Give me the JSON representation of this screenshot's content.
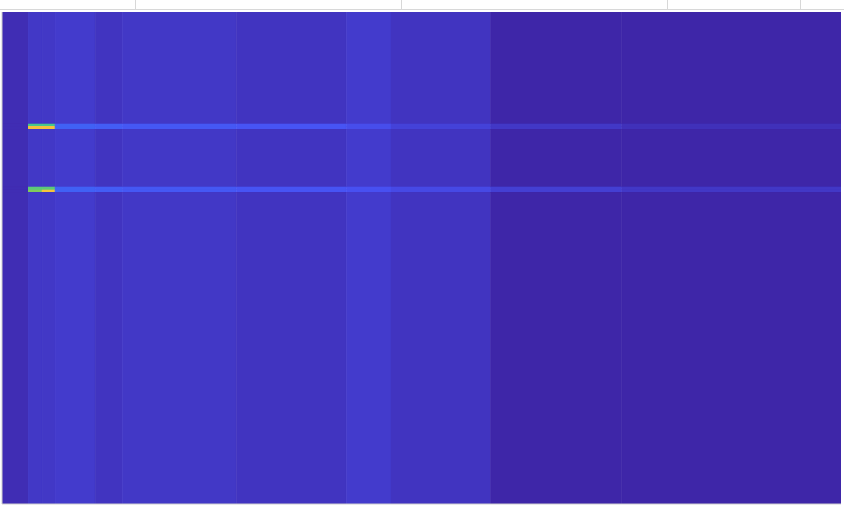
{
  "chart_data": {
    "type": "heatmap",
    "x_edges": [
      0,
      38,
      58,
      77,
      135,
      175,
      340,
      500,
      565,
      710,
      900,
      1219
    ],
    "y_edges": [
      0,
      163,
      167,
      171,
      255,
      259,
      263,
      716
    ],
    "cells": [
      [
        0.02,
        0.05,
        0.05,
        0.06,
        0.04,
        0.05,
        0.04,
        0.06,
        0.04,
        0.0,
        0.0
      ],
      [
        0.02,
        0.52,
        0.52,
        0.16,
        0.15,
        0.14,
        0.13,
        0.11,
        0.08,
        0.05,
        0.03
      ],
      [
        0.02,
        0.8,
        0.8,
        0.16,
        0.15,
        0.14,
        0.13,
        0.11,
        0.08,
        0.05,
        0.03
      ],
      [
        0.02,
        0.05,
        0.05,
        0.06,
        0.04,
        0.05,
        0.04,
        0.06,
        0.04,
        0.0,
        0.0
      ],
      [
        0.02,
        0.55,
        0.55,
        0.16,
        0.15,
        0.14,
        0.13,
        0.12,
        0.1,
        0.07,
        0.05
      ],
      [
        0.02,
        0.6,
        0.82,
        0.16,
        0.15,
        0.14,
        0.13,
        0.12,
        0.1,
        0.07,
        0.05
      ],
      [
        0.02,
        0.05,
        0.05,
        0.06,
        0.04,
        0.05,
        0.04,
        0.06,
        0.04,
        0.0,
        0.0
      ]
    ],
    "xlim": [
      0,
      1219
    ],
    "ylim": [
      0,
      716
    ],
    "zlim": [
      0,
      1
    ],
    "tick_labels": false
  }
}
